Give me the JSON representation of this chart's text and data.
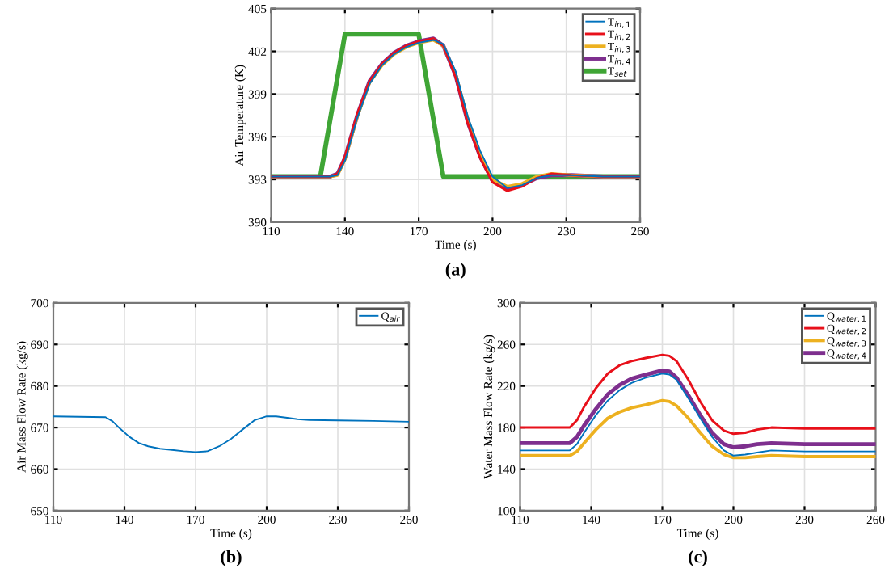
{
  "chart_data": [
    {
      "type": "line",
      "title": "(a)",
      "xlabel": "Time (s)",
      "ylabel": "Air Temperature (K)",
      "xlim": [
        110,
        260
      ],
      "ylim": [
        390,
        405
      ],
      "xticks": [
        110,
        140,
        170,
        200,
        230,
        260
      ],
      "yticks": [
        390,
        393,
        396,
        399,
        402,
        405
      ],
      "grid": true,
      "legend": "top right",
      "x": [
        110,
        134,
        137,
        140,
        145,
        150,
        155,
        160,
        165,
        170,
        176,
        180,
        185,
        190,
        195,
        200,
        206,
        212,
        218,
        224,
        232,
        245,
        260
      ],
      "series": [
        {
          "name": "T$_{in,1}$",
          "color": "#0072bd",
          "values": [
            393.2,
            393.2,
            393.3,
            394.3,
            397.3,
            399.7,
            401.0,
            401.8,
            402.3,
            402.6,
            402.8,
            402.5,
            400.6,
            397.4,
            395.0,
            393.2,
            392.4,
            392.6,
            393.1,
            393.3,
            393.3,
            393.2,
            393.2
          ]
        },
        {
          "name": "T$_{in,2}$",
          "color": "#e8101a",
          "values": [
            393.2,
            393.2,
            393.4,
            394.6,
            397.6,
            399.9,
            401.1,
            401.9,
            402.4,
            402.7,
            402.9,
            402.4,
            400.2,
            396.9,
            394.5,
            392.8,
            392.2,
            392.5,
            393.1,
            393.4,
            393.3,
            393.2,
            393.2
          ]
        },
        {
          "name": "T$_{in,3}$",
          "color": "#edb120",
          "values": [
            393.2,
            393.2,
            393.3,
            394.4,
            397.4,
            399.8,
            401.0,
            401.8,
            402.3,
            402.6,
            402.8,
            402.4,
            400.4,
            397.2,
            394.8,
            393.0,
            392.5,
            392.7,
            393.2,
            393.4,
            393.3,
            393.2,
            393.2
          ]
        },
        {
          "name": "T$_{in,4}$",
          "color": "#7e2f8e",
          "values": [
            393.2,
            393.2,
            393.4,
            394.5,
            397.5,
            399.9,
            401.1,
            401.9,
            402.4,
            402.7,
            402.9,
            402.4,
            400.3,
            397.0,
            394.6,
            392.9,
            392.3,
            392.6,
            393.1,
            393.3,
            393.3,
            393.2,
            393.2
          ]
        },
        {
          "name": "T$_{set}$",
          "color": "#3fa535",
          "x": [
            110,
            130,
            140,
            170,
            180,
            260
          ],
          "values": [
            393.2,
            393.2,
            403.2,
            403.2,
            393.2,
            393.2
          ]
        }
      ]
    },
    {
      "type": "line",
      "title": "(b)",
      "xlabel": "Time (s)",
      "ylabel": "Air Mass Flow Rate (kg/s)",
      "xlim": [
        110,
        260
      ],
      "ylim": [
        650,
        700
      ],
      "xticks": [
        110,
        140,
        170,
        200,
        230,
        260
      ],
      "yticks": [
        650,
        660,
        670,
        680,
        690,
        700
      ],
      "grid": true,
      "legend": "top right",
      "x": [
        110,
        132,
        135,
        138,
        142,
        146,
        150,
        155,
        160,
        165,
        170,
        175,
        180,
        185,
        190,
        195,
        200,
        204,
        208,
        213,
        218,
        230,
        245,
        260
      ],
      "series": [
        {
          "name": "Q$_{air}$",
          "color": "#0072bd",
          "values": [
            672.7,
            672.5,
            671.5,
            669.8,
            667.8,
            666.3,
            665.5,
            664.9,
            664.6,
            664.3,
            664.1,
            664.3,
            665.5,
            667.3,
            669.6,
            671.8,
            672.7,
            672.7,
            672.4,
            672.0,
            671.8,
            671.7,
            671.6,
            671.4
          ]
        }
      ]
    },
    {
      "type": "line",
      "title": "(c)",
      "xlabel": "Time (s)",
      "ylabel": "Water Mass Flow Rate (kg/s)",
      "xlim": [
        110,
        260
      ],
      "ylim": [
        100,
        300
      ],
      "xticks": [
        110,
        140,
        170,
        200,
        230,
        260
      ],
      "yticks": [
        100,
        140,
        180,
        220,
        260,
        300
      ],
      "grid": true,
      "legend": "top right",
      "x": [
        110,
        131,
        134,
        137,
        142,
        147,
        152,
        157,
        163,
        170,
        173,
        176,
        181,
        186,
        191,
        196,
        200,
        205,
        210,
        216,
        230,
        245,
        260
      ],
      "series": [
        {
          "name": "Q$_{water,1}$",
          "color": "#0072bd",
          "values": [
            158,
            158,
            164,
            175,
            192,
            206,
            216,
            223,
            228,
            232,
            231,
            226,
            208,
            189,
            171,
            158,
            153,
            154,
            156,
            158,
            157,
            157,
            157
          ]
        },
        {
          "name": "Q$_{water,2}$",
          "color": "#e8101a",
          "values": [
            180,
            180,
            187,
            200,
            218,
            232,
            240,
            244,
            247,
            250,
            249,
            244,
            226,
            205,
            187,
            177,
            174,
            175,
            178,
            180,
            179,
            179,
            179
          ]
        },
        {
          "name": "Q$_{water,3}$",
          "color": "#edb120",
          "values": [
            153,
            153,
            157,
            165,
            178,
            189,
            195,
            199,
            202,
            206,
            205,
            201,
            189,
            175,
            162,
            154,
            151,
            151,
            152,
            153,
            152,
            152,
            152
          ]
        },
        {
          "name": "Q$_{water,4}$",
          "color": "#7e2f8e",
          "values": [
            165,
            165,
            171,
            182,
            198,
            212,
            221,
            227,
            231,
            235,
            234,
            228,
            211,
            192,
            175,
            164,
            161,
            162,
            164,
            165,
            164,
            164,
            164
          ]
        }
      ]
    }
  ]
}
